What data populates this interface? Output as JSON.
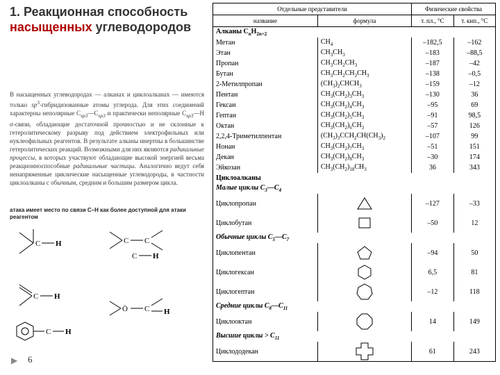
{
  "title_prefix": "1. Реакционная способность ",
  "title_accent": "насыщенных",
  "title_suffix": " углеводородов",
  "paragraph_parts": {
    "p1": "В насыщенных углеводородах — алканах и циклоалканах — имеются только ",
    "p2": "sp",
    "p3": "3",
    "p4": "-гибридизованные атомы углерода. Для этих соединений характерны неполярные C",
    "p5": "sp3",
    "p6": "—C",
    "p7": "sp3",
    "p8": " и практически неполярные C",
    "p9": "sp3",
    "p10": "—H σ-связи, обладающие достаточной прочностью и не склонные к гетеролитическому разрыву под действием электрофильных или нуклеофильных реагентов. В результате алканы инертны в большинстве гетеролитических реакций. Возможными для них являются ",
    "p11": "радикальные процессы",
    "p12": ", в которых участвуют обладающие высокой энергией весьма реакционноспособные ",
    "p13": "радикальные частицы",
    "p14": ". Аналогично ведут себя ненапряженные циклические насыщенные углеводороды, в частности циклоалканы с обычным, средним и большим размером цикла."
  },
  "caption": "атака имеет место по связи C–H как более доступной для атаки реагентом",
  "page_number": "6",
  "table": {
    "head_group1": "Отдельные представители",
    "head_group2": "Физические свойства",
    "head_name": "название",
    "head_formula": "формула",
    "head_mp": "т. пл., °C",
    "head_bp": "т. кип., °C",
    "alkanes_header": "Алканы CnH2n+2",
    "cyclo_header": "Циклоалканы",
    "small_header": "Малые циклы C3—C4",
    "normal_header": "Обычные циклы C5—C7",
    "medium_header": "Средние циклы C8—C11",
    "large_header": "Высшие циклы > C11",
    "alkanes": [
      {
        "name": "Метан",
        "formula": "CH4",
        "mp": "–182,5",
        "bp": "–162"
      },
      {
        "name": "Этан",
        "formula": "CH3CH3",
        "mp": "–183",
        "bp": "–88,5"
      },
      {
        "name": "Пропан",
        "formula": "CH3CH2CH3",
        "mp": "–187",
        "bp": "–42"
      },
      {
        "name": "Бутан",
        "formula": "CH3CH2CH2CH3",
        "mp": "–138",
        "bp": "–0,5"
      },
      {
        "name": "2-Метилпропан",
        "formula": "(CH3)2CHCH3",
        "mp": "–159",
        "bp": "–12"
      },
      {
        "name": "Пентан",
        "formula": "CH3(CH2)3CH3",
        "mp": "–130",
        "bp": "36"
      },
      {
        "name": "Гексан",
        "formula": "CH3(CH2)4CH3",
        "mp": "–95",
        "bp": "69"
      },
      {
        "name": "Гептан",
        "formula": "CH3(CH2)5CH3",
        "mp": "–91",
        "bp": "98,5"
      },
      {
        "name": "Октан",
        "formula": "CH3(CH2)6CH3",
        "mp": "–57",
        "bp": "126"
      },
      {
        "name": "2,2,4-Триметилпентан",
        "formula": "(CH3)3CCH2CH(CH3)2",
        "mp": "–107",
        "bp": "99"
      },
      {
        "name": "Нонан",
        "formula": "CH3(CH2)7CH3",
        "mp": "–51",
        "bp": "151"
      },
      {
        "name": "Декан",
        "formula": "CH3(CH2)8CH3",
        "mp": "–30",
        "bp": "174"
      },
      {
        "name": "Эйкозан",
        "formula": "CH3(CH2)18CH3",
        "mp": "36",
        "bp": "343"
      }
    ],
    "cyclo": [
      {
        "name": "Циклопропан",
        "shape": "triangle",
        "mp": "–127",
        "bp": "–33"
      },
      {
        "name": "Циклобутан",
        "shape": "square",
        "mp": "–50",
        "bp": "12"
      },
      {
        "name": "Циклопентан",
        "shape": "pentagon",
        "mp": "–94",
        "bp": "50"
      },
      {
        "name": "Циклогексан",
        "shape": "hexagon",
        "mp": "6,5",
        "bp": "81"
      },
      {
        "name": "Циклогептан",
        "shape": "heptagon",
        "mp": "–12",
        "bp": "118"
      },
      {
        "name": "Циклооктан",
        "shape": "octagon",
        "mp": "14",
        "bp": "149"
      },
      {
        "name": "Циклододекан",
        "shape": "cross",
        "mp": "61",
        "bp": "243"
      }
    ]
  },
  "style": {
    "accent_color": "#b00000",
    "title_fontsize": 18,
    "body_fontsize": 9,
    "table_fontsize": 10
  }
}
